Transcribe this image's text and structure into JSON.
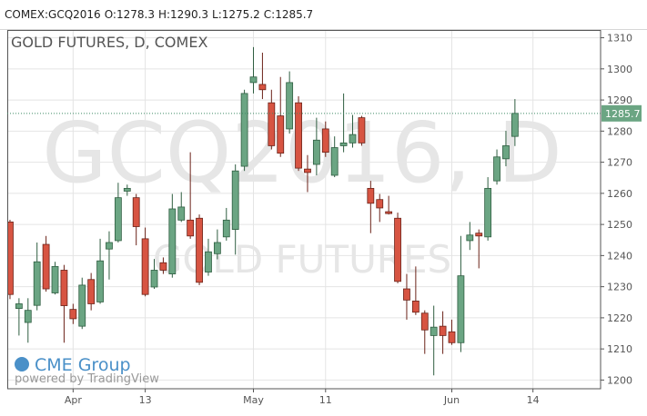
{
  "chart_data": {
    "type": "candlestick",
    "header_symbol": "COMEX:GCQ2016",
    "ohlc_labels": [
      "O:",
      "H:",
      "L:",
      "C:"
    ],
    "title": "GOLD FUTURES, D, COMEX",
    "watermark": "GCQ2016, D",
    "watermark_subtitle": "GOLD FUTURES",
    "branding": [
      "CME Group",
      "powered by TradingView"
    ],
    "up_color": "#6ba583",
    "down_color": "#d75442",
    "open": [
      1250.8,
      1223,
      1218.5,
      1224,
      1243.6,
      1228,
      1235.3,
      1222.7,
      1217.3,
      1232.3,
      1225.1,
      1242.1,
      1244.8,
      1260.7,
      1258.6,
      1245.4,
      1229.9,
      1237.7,
      1234.1,
      1251.4,
      1251.4,
      1252,
      1234.7,
      1240.6,
      1246,
      1248.4,
      1268.7,
      1295.6,
      1295,
      1289.1,
      1284.9,
      1280.7,
      1289.1,
      1267.8,
      1269.3,
      1280.7,
      1265.8,
      1275.3,
      1276.2,
      1284.3,
      1261.6,
      1258,
      1254.1,
      1252,
      1229.3,
      1225.4,
      1221.5,
      1214.3,
      1217.3,
      1215.5,
      1212,
      1244.8,
      1247.2,
      1246,
      1264,
      1271.1,
      1278.3
    ],
    "high": [
      1251.5,
      1226.3,
      1226.3,
      1244.2,
      1246.3,
      1238,
      1237,
      1224.5,
      1232.9,
      1234.4,
      1245.4,
      1247.8,
      1263.4,
      1262.8,
      1259.8,
      1249,
      1238.9,
      1239.4,
      1259.8,
      1260.4,
      1273.2,
      1253.2,
      1245.4,
      1248.4,
      1255.3,
      1269.3,
      1293.3,
      1307,
      1305.2,
      1293.3,
      1297.4,
      1299.2,
      1291.2,
      1272.3,
      1284.3,
      1283.1,
      1278.3,
      1292.1,
      1285.2,
      1284.9,
      1264,
      1259.8,
      1259.2,
      1253.8,
      1234.1,
      1236.5,
      1222.4,
      1223.9,
      1222.1,
      1219.4,
      1246.3,
      1250.8,
      1248.4,
      1265.2,
      1274.1,
      1280.1,
      1290.3
    ],
    "low": [
      1226,
      1214.3,
      1212,
      1222.4,
      1228.4,
      1227.5,
      1212,
      1218,
      1216.4,
      1222.4,
      1224.5,
      1232.3,
      1244.2,
      1259.2,
      1243.3,
      1226.9,
      1229.3,
      1234.1,
      1232.9,
      1250.8,
      1245.4,
      1230.5,
      1233.5,
      1238.8,
      1244.8,
      1240.3,
      1267.2,
      1292.1,
      1290.3,
      1274.1,
      1271.7,
      1279.2,
      1267.2,
      1260.4,
      1265.8,
      1271.7,
      1265.2,
      1273.2,
      1274.7,
      1275.3,
      1247.2,
      1250.8,
      1253.2,
      1231.1,
      1219.4,
      1220.9,
      1208.4,
      1201.5,
      1208.4,
      1211.3,
      1209,
      1241.8,
      1235.9,
      1244.8,
      1262.8,
      1268.7,
      1275.2
    ],
    "close": [
      1227.5,
      1224.5,
      1222.4,
      1238,
      1229.3,
      1236.5,
      1223.9,
      1219.7,
      1230.5,
      1224.5,
      1238.3,
      1244.2,
      1258.6,
      1261.6,
      1249.3,
      1227.5,
      1235.3,
      1235.3,
      1255,
      1255.6,
      1246.3,
      1231.4,
      1241.2,
      1244.2,
      1251.4,
      1267.2,
      1292.1,
      1297.4,
      1293.3,
      1275.3,
      1272.9,
      1295.6,
      1268.1,
      1266.7,
      1277.1,
      1273.2,
      1274.7,
      1276.2,
      1278.9,
      1276.2,
      1256.8,
      1255.3,
      1253.5,
      1231.7,
      1225.7,
      1221.8,
      1216.1,
      1217,
      1214.3,
      1212,
      1233.5,
      1246.6,
      1246.3,
      1261.6,
      1271.7,
      1275.3,
      1285.7
    ],
    "xlim": [
      -0.3,
      65.5
    ],
    "xticks": [
      {
        "value": 7,
        "label": "Apr"
      },
      {
        "value": 15,
        "label": "13"
      },
      {
        "value": 27,
        "label": "May"
      },
      {
        "value": 35,
        "label": "11"
      },
      {
        "value": 49,
        "label": "Jun"
      },
      {
        "value": 58,
        "label": "14"
      }
    ],
    "ylim": [
      1197.2,
      1312.5
    ],
    "yticks": [
      1200,
      1210,
      1220,
      1230,
      1240,
      1250,
      1260,
      1270,
      1280,
      1290,
      1300,
      1310
    ],
    "grid": true
  }
}
